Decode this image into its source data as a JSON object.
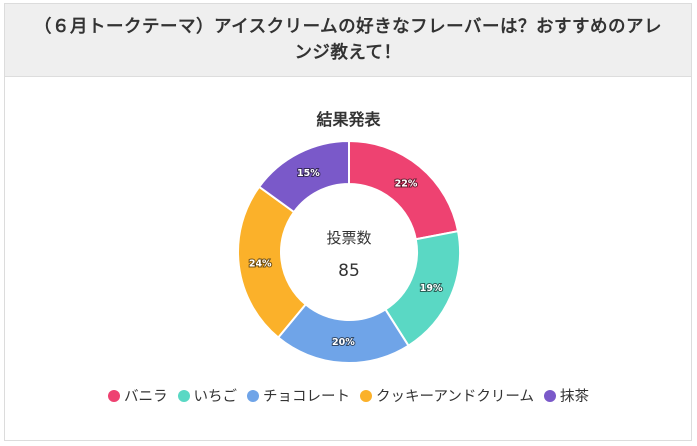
{
  "poll": {
    "title": "（６月トークテーマ）アイスクリームの好きなフレーバーは？おすすめのアレンジ教えて！",
    "result_heading": "結果発表",
    "center_label": "投票数",
    "center_value": "85"
  },
  "chart_data": {
    "type": "pie",
    "title": "結果発表",
    "total_votes": 85,
    "categories": [
      "バニラ",
      "いちご",
      "チョコレート",
      "クッキーアンドクリーム",
      "抹茶"
    ],
    "values": [
      22,
      19,
      20,
      24,
      15
    ],
    "value_labels": [
      "22%",
      "19%",
      "20%",
      "24%",
      "15%"
    ],
    "unit": "%",
    "colors": [
      "#ee4271",
      "#5ad8c4",
      "#6fa4e8",
      "#fbb12a",
      "#7a59c9"
    ],
    "legend_position": "bottom"
  }
}
